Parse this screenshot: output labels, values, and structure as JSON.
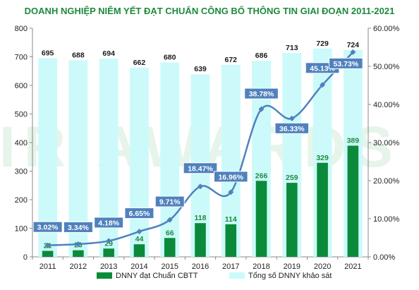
{
  "chart_data": {
    "type": "bar",
    "title": "DOANH NGHIỆP NIÊM YẾT ĐẠT CHUẨN CÔNG BỐ THÔNG TIN GIAI ĐOẠN 2011-2021",
    "categories": [
      "2011",
      "2012",
      "2013",
      "2014",
      "2015",
      "2016",
      "2017",
      "2018",
      "2019",
      "2020",
      "2021"
    ],
    "series": [
      {
        "name": "Tổng số DNNY khảo sát",
        "type": "bar",
        "axis": "left",
        "color": "#ccfafa",
        "values": [
          695,
          688,
          694,
          662,
          680,
          639,
          672,
          686,
          713,
          729,
          724
        ],
        "labels": [
          "695",
          "688",
          "694",
          "662",
          "680",
          "639",
          "672",
          "686",
          "713",
          "729",
          "724"
        ]
      },
      {
        "name": "DNNY đạt Chuẩn CBTT",
        "type": "bar",
        "axis": "left",
        "color": "#0b8a3a",
        "values": [
          21,
          23,
          29,
          44,
          66,
          118,
          114,
          266,
          259,
          329,
          389
        ],
        "labels": [
          "21",
          "23",
          "29",
          "44",
          "66",
          "118",
          "114",
          "266",
          "259",
          "329",
          "389"
        ]
      },
      {
        "type": "line",
        "axis": "right",
        "color": "#4f81bd",
        "values": [
          3.02,
          3.34,
          4.18,
          6.65,
          9.71,
          18.47,
          16.96,
          38.78,
          36.33,
          45.13,
          53.73
        ],
        "labels": [
          "3.02%",
          "3.34%",
          "4.18%",
          "6.65%",
          "9.71%",
          "18.47%",
          "16.96%",
          "38.78%",
          "36.33%",
          "45.13%",
          "53.73%"
        ]
      }
    ],
    "y_left": {
      "min": 0,
      "max": 800,
      "ticks": [
        "0",
        "100",
        "200",
        "300",
        "400",
        "500",
        "600",
        "700",
        "800"
      ]
    },
    "y_right": {
      "min": 0,
      "max": 60,
      "ticks": [
        "0.00%",
        "10.00%",
        "20.00%",
        "30.00%",
        "40.00%",
        "50.00%",
        "60.00%"
      ]
    },
    "grid": false,
    "legend": "bottom",
    "watermark": "IR AWARDS"
  }
}
